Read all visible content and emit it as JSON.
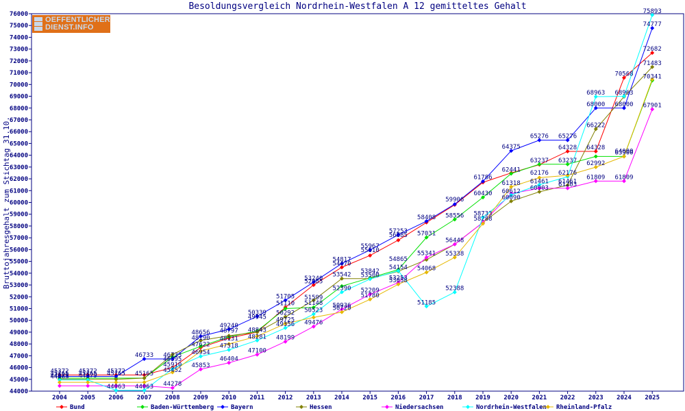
{
  "page": {
    "logo_line1": "OEFFENTLICHER",
    "logo_line2": "DIENST.INFO"
  },
  "chart_data": {
    "type": "line",
    "title": "Besoldungsvergleich Nordrhein-Westfalen A 12 gemitteltes Gehalt",
    "xlabel": "",
    "ylabel": "Bruttojahresgehalt zum Stichtag 31.10.",
    "categories": [
      "2004",
      "2005",
      "2006",
      "2007",
      "2008",
      "2009",
      "2010",
      "2011",
      "2012",
      "2013",
      "2014",
      "2015",
      "2016",
      "2017",
      "2018",
      "2019",
      "2020",
      "2021",
      "2022",
      "2023",
      "2024",
      "2025"
    ],
    "ylim": [
      44000,
      76000
    ],
    "yticks": [
      44000,
      45000,
      46000,
      47000,
      48000,
      49000,
      50000,
      51000,
      52000,
      53000,
      54000,
      55000,
      56000,
      57000,
      58000,
      59000,
      60000,
      61000,
      62000,
      63000,
      64000,
      65000,
      66000,
      67000,
      68000,
      69000,
      70000,
      71000,
      72000,
      73000,
      74000,
      75000,
      76000
    ],
    "grid": false,
    "legend_position": "bottom",
    "series": [
      {
        "name": "Bund",
        "color": "#ff0000",
        "values": [
          45372,
          45372,
          45372,
          45372,
          46000,
          47700,
          48500,
          49000,
          51110,
          53000,
          54500,
          55500,
          56800,
          58300,
          59800,
          61700,
          62500,
          63200,
          64328,
          64328,
          70568,
          72682
        ]
      },
      {
        "name": "Baden-Württemberg",
        "color": "#00e000",
        "values": [
          45100,
          45100,
          45100,
          45100,
          46900,
          47800,
          48600,
          49100,
          51000,
          51100,
          52900,
          53600,
          54300,
          57031,
          58556,
          60430,
          62441,
          63237,
          63237,
          63900,
          63900,
          70341
        ]
      },
      {
        "name": "Bayern",
        "color": "#0000ff",
        "values": [
          45250,
          45250,
          45250,
          46733,
          46733,
          48656,
          49240,
          50339,
          51705,
          53240,
          54817,
          55967,
          57253,
          58408,
          59850,
          61786,
          64375,
          65276,
          65276,
          68000,
          68000,
          74777
        ]
      },
      {
        "name": "Hessen",
        "color": "#808000",
        "values": [
          45000,
          45000,
          45000,
          45100,
          47100,
          48300,
          48700,
          49000,
          50292,
          51700,
          53542,
          53542,
          54154,
          55141,
          56448,
          58300,
          60100,
          60900,
          61461,
          66222,
          68963,
          71483
        ]
      },
      {
        "name": "Niedersachsen",
        "color": "#ff00ff",
        "values": [
          44450,
          44450,
          44450,
          44450,
          44278,
          45853,
          46404,
          47100,
          48199,
          49476,
          50936,
          52209,
          53200,
          55341,
          56448,
          58300,
          60750,
          61200,
          61203,
          61809,
          61809,
          67901
        ]
      },
      {
        "name": "Nordrhein-Westfalen",
        "color": "#00ffff",
        "values": [
          44950,
          44950,
          44063,
          44063,
          45900,
          46950,
          47500,
          48300,
          49356,
          50523,
          52390,
          53500,
          54200,
          51185,
          52388,
          58730,
          60630,
          61500,
          62176,
          68963,
          69000,
          75893
        ]
      },
      {
        "name": "Rheinland-Pfalz",
        "color": "#e6b800",
        "values": [
          44750,
          44750,
          44750,
          44750,
          45600,
          47400,
          48000,
          48650,
          49725,
          50250,
          50700,
          51780,
          53058,
          54068,
          55338,
          58200,
          61318,
          62100,
          62292,
          62992,
          63900,
          70441
        ]
      }
    ],
    "data_labels": [
      {
        "text": "45372",
        "x": 0,
        "y": 45372
      },
      {
        "text": "45165",
        "x": 0,
        "y": 45165
      },
      {
        "text": "44979",
        "x": 0,
        "y": 44979
      },
      {
        "text": "44063",
        "x": 0,
        "y": 44900
      },
      {
        "text": "45372",
        "x": 1,
        "y": 45372
      },
      {
        "text": "45165",
        "x": 1,
        "y": 45165
      },
      {
        "text": "44979",
        "x": 1,
        "y": 44979
      },
      {
        "text": "45372",
        "x": 2,
        "y": 45372
      },
      {
        "text": "45165",
        "x": 2,
        "y": 45165
      },
      {
        "text": "44063",
        "x": 2,
        "y": 44063
      },
      {
        "text": "46733",
        "x": 3,
        "y": 46733
      },
      {
        "text": "45165",
        "x": 3,
        "y": 45165
      },
      {
        "text": "44063",
        "x": 3,
        "y": 44063
      },
      {
        "text": "46733",
        "x": 4,
        "y": 46733
      },
      {
        "text": "46395",
        "x": 4,
        "y": 46395
      },
      {
        "text": "45910",
        "x": 4,
        "y": 45910
      },
      {
        "text": "45452",
        "x": 4,
        "y": 45452
      },
      {
        "text": "44278",
        "x": 4,
        "y": 44278
      },
      {
        "text": "48656",
        "x": 5,
        "y": 48656
      },
      {
        "text": "48190",
        "x": 5,
        "y": 48190
      },
      {
        "text": "47622",
        "x": 5,
        "y": 47622
      },
      {
        "text": "46954",
        "x": 5,
        "y": 46954
      },
      {
        "text": "45853",
        "x": 5,
        "y": 45853
      },
      {
        "text": "49240",
        "x": 6,
        "y": 49240
      },
      {
        "text": "48797",
        "x": 6,
        "y": 48797
      },
      {
        "text": "48131",
        "x": 6,
        "y": 48131
      },
      {
        "text": "47518",
        "x": 6,
        "y": 47518
      },
      {
        "text": "46404",
        "x": 6,
        "y": 46404
      },
      {
        "text": "50339",
        "x": 7,
        "y": 50339
      },
      {
        "text": "49945",
        "x": 7,
        "y": 49945
      },
      {
        "text": "48843",
        "x": 7,
        "y": 48843
      },
      {
        "text": "48281",
        "x": 7,
        "y": 48281
      },
      {
        "text": "47100",
        "x": 7,
        "y": 47100
      },
      {
        "text": "51705",
        "x": 8,
        "y": 51705
      },
      {
        "text": "51110",
        "x": 8,
        "y": 51110
      },
      {
        "text": "50292",
        "x": 8,
        "y": 50292
      },
      {
        "text": "49725",
        "x": 8,
        "y": 49725
      },
      {
        "text": "49356",
        "x": 8,
        "y": 49356
      },
      {
        "text": "48199",
        "x": 8,
        "y": 48199
      },
      {
        "text": "53240",
        "x": 9,
        "y": 53240
      },
      {
        "text": "52985",
        "x": 9,
        "y": 52985
      },
      {
        "text": "51599",
        "x": 9,
        "y": 51599
      },
      {
        "text": "51148",
        "x": 9,
        "y": 51148
      },
      {
        "text": "50523",
        "x": 9,
        "y": 50523
      },
      {
        "text": "49476",
        "x": 9,
        "y": 49476
      },
      {
        "text": "54817",
        "x": 10,
        "y": 54817
      },
      {
        "text": "54470",
        "x": 10,
        "y": 54470
      },
      {
        "text": "53542",
        "x": 10,
        "y": 53542
      },
      {
        "text": "52390",
        "x": 10,
        "y": 52390
      },
      {
        "text": "50936",
        "x": 10,
        "y": 50936
      },
      {
        "text": "50720",
        "x": 10,
        "y": 50720
      },
      {
        "text": "55967",
        "x": 11,
        "y": 55967
      },
      {
        "text": "55610",
        "x": 11,
        "y": 55610
      },
      {
        "text": "53842",
        "x": 11,
        "y": 53842
      },
      {
        "text": "53500",
        "x": 11,
        "y": 53500
      },
      {
        "text": "52209",
        "x": 11,
        "y": 52209
      },
      {
        "text": "51780",
        "x": 11,
        "y": 51780
      },
      {
        "text": "57253",
        "x": 12,
        "y": 57253
      },
      {
        "text": "56885",
        "x": 12,
        "y": 56885
      },
      {
        "text": "54865",
        "x": 12,
        "y": 54865
      },
      {
        "text": "54154",
        "x": 12,
        "y": 54154
      },
      {
        "text": "53253",
        "x": 12,
        "y": 53253
      },
      {
        "text": "53058",
        "x": 12,
        "y": 53058
      },
      {
        "text": "58408",
        "x": 13,
        "y": 58408
      },
      {
        "text": "57031",
        "x": 13,
        "y": 57031
      },
      {
        "text": "55341",
        "x": 13,
        "y": 55341
      },
      {
        "text": "54068",
        "x": 13,
        "y": 54068
      },
      {
        "text": "51185",
        "x": 13,
        "y": 51185
      },
      {
        "text": "59906",
        "x": 14,
        "y": 59906
      },
      {
        "text": "58556",
        "x": 14,
        "y": 58556
      },
      {
        "text": "56448",
        "x": 14,
        "y": 56448
      },
      {
        "text": "55338",
        "x": 14,
        "y": 55338
      },
      {
        "text": "52388",
        "x": 14,
        "y": 52388
      },
      {
        "text": "61786",
        "x": 15,
        "y": 61786
      },
      {
        "text": "60430",
        "x": 15,
        "y": 60430
      },
      {
        "text": "58733",
        "x": 15,
        "y": 58733
      },
      {
        "text": "58288",
        "x": 15,
        "y": 58288
      },
      {
        "text": "64375",
        "x": 16,
        "y": 64375
      },
      {
        "text": "62441",
        "x": 16,
        "y": 62441
      },
      {
        "text": "61318",
        "x": 16,
        "y": 61318
      },
      {
        "text": "60612",
        "x": 16,
        "y": 60612
      },
      {
        "text": "60090",
        "x": 16,
        "y": 60090
      },
      {
        "text": "65276",
        "x": 17,
        "y": 65276
      },
      {
        "text": "63237",
        "x": 17,
        "y": 63237
      },
      {
        "text": "62176",
        "x": 17,
        "y": 62176
      },
      {
        "text": "61461",
        "x": 17,
        "y": 61461
      },
      {
        "text": "60903",
        "x": 17,
        "y": 60903
      },
      {
        "text": "65276",
        "x": 18,
        "y": 65276
      },
      {
        "text": "64328",
        "x": 18,
        "y": 64328
      },
      {
        "text": "63237",
        "x": 18,
        "y": 63237
      },
      {
        "text": "62176",
        "x": 18,
        "y": 62176
      },
      {
        "text": "61461",
        "x": 18,
        "y": 61461
      },
      {
        "text": "61203",
        "x": 18,
        "y": 61203
      },
      {
        "text": "68963",
        "x": 19,
        "y": 68963
      },
      {
        "text": "68000",
        "x": 19,
        "y": 68000
      },
      {
        "text": "66222",
        "x": 19,
        "y": 66222
      },
      {
        "text": "64328",
        "x": 19,
        "y": 64328
      },
      {
        "text": "62992",
        "x": 19,
        "y": 62992
      },
      {
        "text": "61809",
        "x": 19,
        "y": 61809
      },
      {
        "text": "70568",
        "x": 20,
        "y": 70568
      },
      {
        "text": "68963",
        "x": 20,
        "y": 68963
      },
      {
        "text": "68000",
        "x": 20,
        "y": 68000
      },
      {
        "text": "64000",
        "x": 20,
        "y": 64000
      },
      {
        "text": "63900",
        "x": 20,
        "y": 63900
      },
      {
        "text": "61809",
        "x": 20,
        "y": 61809
      },
      {
        "text": "75893",
        "x": 21,
        "y": 75893
      },
      {
        "text": "74777",
        "x": 21,
        "y": 74777
      },
      {
        "text": "72682",
        "x": 21,
        "y": 72682
      },
      {
        "text": "71483",
        "x": 21,
        "y": 71483
      },
      {
        "text": "70341",
        "x": 21,
        "y": 70341
      },
      {
        "text": "67901",
        "x": 21,
        "y": 67901
      }
    ]
  }
}
